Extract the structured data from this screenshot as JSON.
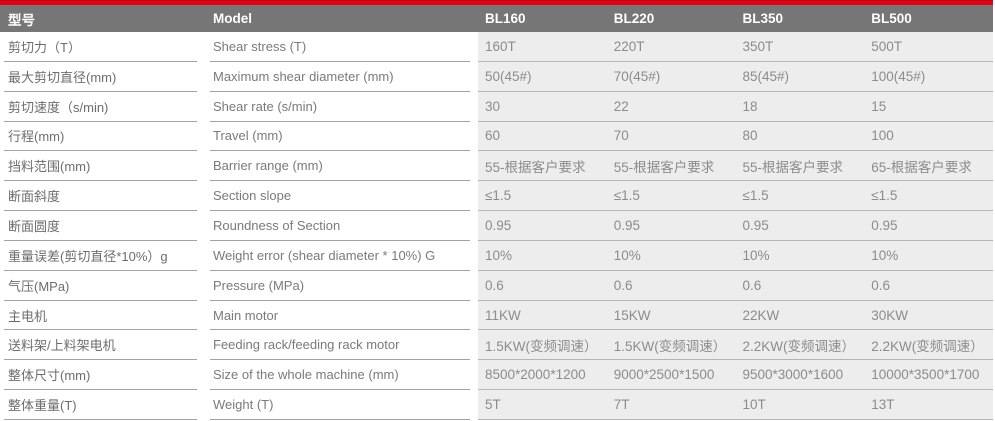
{
  "theme": {
    "accent_red": "#e60012",
    "header_bg": "#767676",
    "header_text": "#ffffff",
    "data_bg": "#ededed",
    "data_line": "#b5b5b5",
    "label_line": "#a3a3a3",
    "label_text": "#6d6d6d",
    "value_text": "#8c8c8c"
  },
  "table": {
    "header": {
      "label_cn": "型号",
      "label_en": "Model",
      "models": [
        "BL160",
        "BL220",
        "BL350",
        "BL500"
      ]
    },
    "rows": [
      {
        "cn": "剪切力（T）",
        "en": "Shear stress (T)",
        "values": [
          "160T",
          "220T",
          "350T",
          "500T"
        ]
      },
      {
        "cn": "最大剪切直径(mm)",
        "en": "Maximum shear diameter (mm)",
        "values": [
          "50(45#)",
          "70(45#)",
          "85(45#)",
          "100(45#)"
        ]
      },
      {
        "cn": "剪切速度（s/min)",
        "en": "Shear rate (s/min)",
        "values": [
          "30",
          "22",
          "18",
          "15"
        ]
      },
      {
        "cn": "行程(mm)",
        "en": "Travel (mm)",
        "values": [
          "60",
          "70",
          "80",
          "100"
        ]
      },
      {
        "cn": "挡料范围(mm)",
        "en": "Barrier range (mm)",
        "values": [
          "55-根据客户要求",
          "55-根据客户要求",
          "55-根据客户要求",
          "65-根据客户要求"
        ]
      },
      {
        "cn": "断面斜度",
        "en": "Section slope",
        "values": [
          "≤1.5",
          "≤1.5",
          "≤1.5",
          "≤1.5"
        ]
      },
      {
        "cn": "断面圆度",
        "en": "Roundness of Section",
        "values": [
          "0.95",
          "0.95",
          "0.95",
          "0.95"
        ]
      },
      {
        "cn": "重量误差(剪切直径*10%）g",
        "en": "Weight error (shear diameter * 10%) G",
        "values": [
          "10%",
          "10%",
          "10%",
          "10%"
        ]
      },
      {
        "cn": "气压(MPa)",
        "en": "Pressure (MPa)",
        "values": [
          "0.6",
          "0.6",
          "0.6",
          "0.6"
        ]
      },
      {
        "cn": "主电机",
        "en": "Main motor",
        "values": [
          "11KW",
          "15KW",
          "22KW",
          "30KW"
        ]
      },
      {
        "cn": "送料架/上料架电机",
        "en": "Feeding rack/feeding rack motor",
        "values": [
          "1.5KW(变频调速）",
          "1.5KW(变频调速）",
          "2.2KW(变频调速）",
          "2.2KW(变频调速）"
        ]
      },
      {
        "cn": "整体尺寸(mm)",
        "en": "Size of the whole machine (mm)",
        "values": [
          "8500*2000*1200",
          "9000*2500*1500",
          "9500*3000*1600",
          "10000*3500*1700"
        ]
      },
      {
        "cn": "整体重量(T)",
        "en": "Weight (T)",
        "values": [
          "5T",
          "7T",
          "10T",
          "13T"
        ]
      }
    ]
  }
}
